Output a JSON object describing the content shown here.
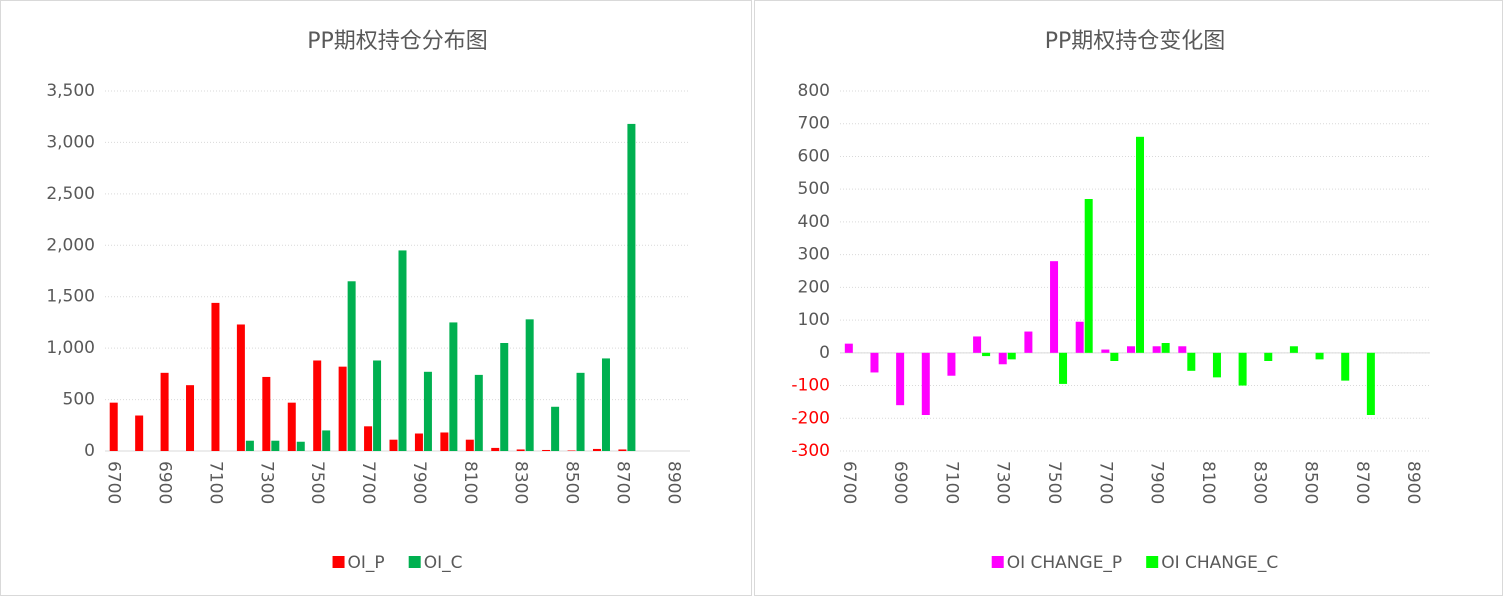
{
  "chart_data": [
    {
      "type": "bar",
      "title": "PP期权持仓分布图",
      "categories": [
        "6700",
        null,
        "6900",
        null,
        "7100",
        null,
        "7300",
        null,
        "7500",
        null,
        "7700",
        null,
        "7900",
        null,
        "8100",
        null,
        "8300",
        null,
        "8500",
        null,
        "8700",
        null,
        "8900"
      ],
      "series": [
        {
          "name": "OI_P",
          "color": "#ff0000",
          "values": [
            470,
            345,
            760,
            640,
            1440,
            1230,
            720,
            470,
            880,
            820,
            240,
            110,
            170,
            180,
            110,
            30,
            15,
            10,
            5,
            20,
            15,
            0,
            0
          ]
        },
        {
          "name": "OI_C",
          "color": "#00b050",
          "values": [
            0,
            0,
            0,
            0,
            0,
            100,
            100,
            90,
            200,
            1650,
            880,
            1950,
            770,
            1250,
            740,
            1050,
            1280,
            430,
            760,
            900,
            3180,
            0,
            0
          ]
        }
      ],
      "ylim": [
        0,
        3500
      ],
      "yticks": [
        0,
        500,
        {
          "value": 1000,
          "label": "1,000"
        },
        {
          "value": 1500,
          "label": "1,500"
        },
        {
          "value": 2000,
          "label": "2,000"
        },
        {
          "value": 2500,
          "label": "2,500"
        },
        {
          "value": 3000,
          "label": "3,000"
        },
        {
          "value": 3500,
          "label": "3,500"
        }
      ],
      "grid": true,
      "legend": "bottom"
    },
    {
      "type": "bar",
      "title": "PP期权持仓变化图",
      "categories": [
        "6700",
        null,
        "6900",
        null,
        "7100",
        null,
        "7300",
        null,
        "7500",
        null,
        "7700",
        null,
        "7900",
        null,
        "8100",
        null,
        "8300",
        null,
        "8500",
        null,
        "8700",
        null,
        "8900"
      ],
      "series": [
        {
          "name": "OI CHANGE_P",
          "color": "#ff00ff",
          "values": [
            28,
            -60,
            -160,
            -190,
            -70,
            50,
            -35,
            65,
            280,
            95,
            10,
            20,
            20,
            20,
            0,
            0,
            0,
            0,
            0,
            0,
            0,
            0,
            0
          ]
        },
        {
          "name": "OI CHANGE_C",
          "color": "#00ff00",
          "values": [
            0,
            0,
            0,
            0,
            0,
            -10,
            -20,
            0,
            -95,
            470,
            -25,
            660,
            30,
            -55,
            -75,
            -100,
            -25,
            20,
            -20,
            -85,
            -190,
            0,
            0
          ]
        }
      ],
      "ylim": [
        -300,
        800
      ],
      "yticks": [
        -300,
        -200,
        -100,
        0,
        100,
        200,
        300,
        400,
        500,
        600,
        700,
        800
      ],
      "negative_tick_color": "#ff0000",
      "grid": true,
      "legend": "bottom"
    }
  ]
}
